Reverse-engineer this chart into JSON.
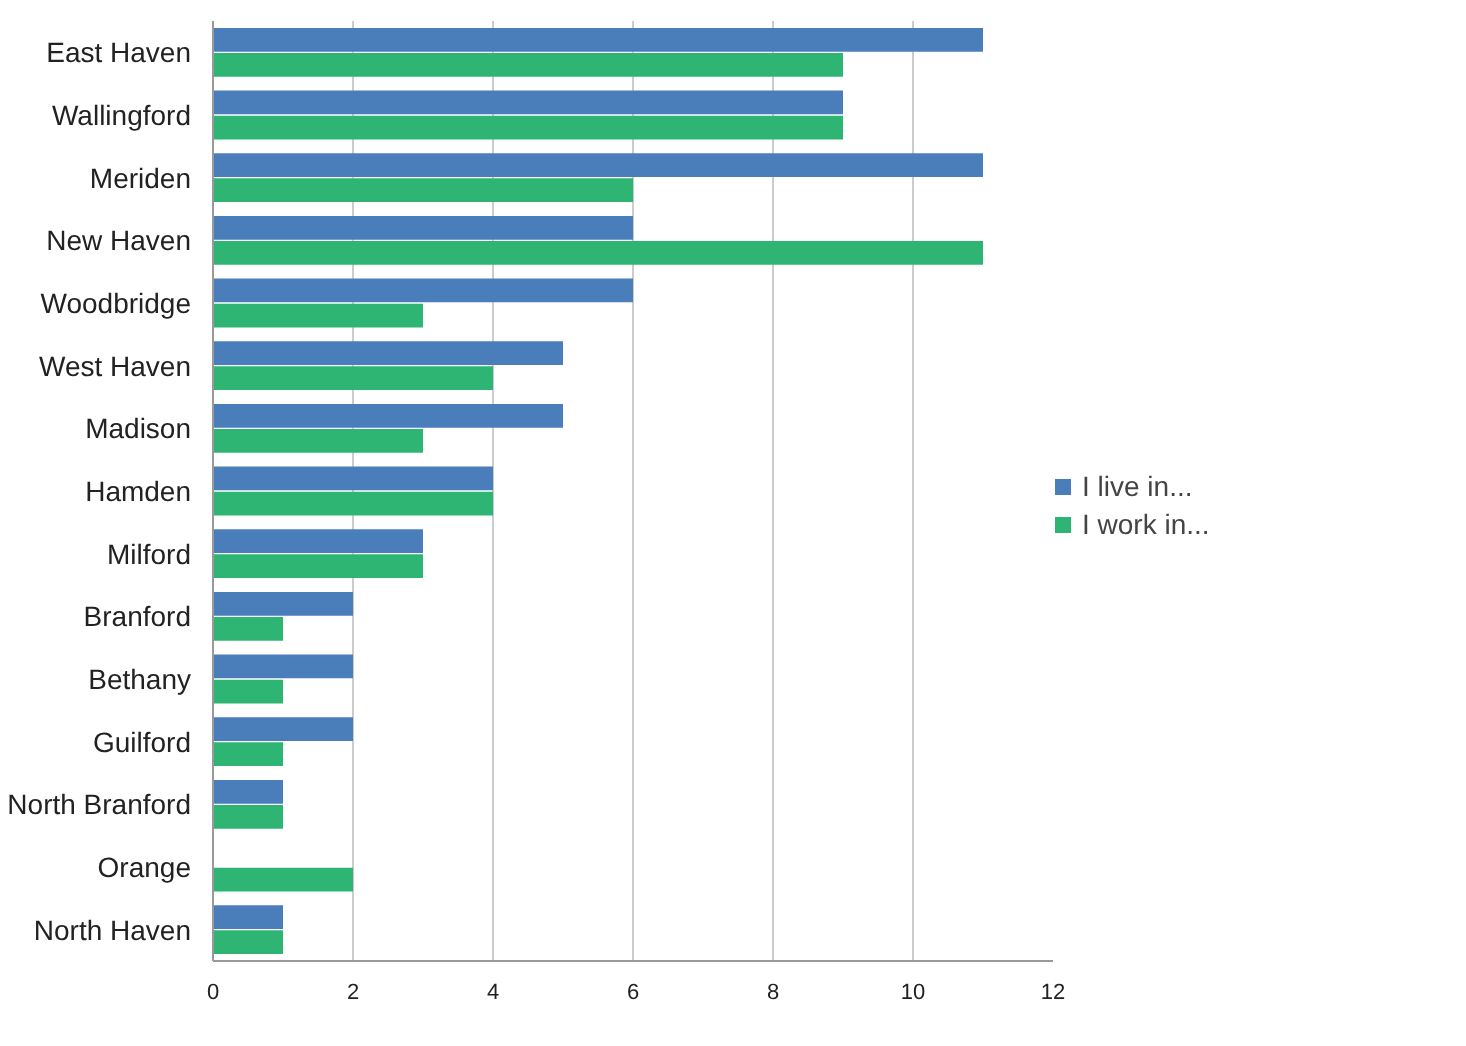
{
  "chart_data": {
    "type": "bar",
    "orientation": "horizontal",
    "categories": [
      "East Haven",
      "Wallingford",
      "Meriden",
      "New Haven",
      "Woodbridge",
      "West Haven",
      "Madison",
      "Hamden",
      "Milford",
      "Branford",
      "Bethany",
      "Guilford",
      "North Branford",
      "Orange",
      "North Haven"
    ],
    "series": [
      {
        "name": "I live in...",
        "color": "#4a7ebb",
        "values": [
          11,
          9,
          11,
          6,
          6,
          5,
          5,
          4,
          3,
          2,
          2,
          2,
          1,
          0,
          1
        ]
      },
      {
        "name": "I work in...",
        "color": "#2fb573",
        "values": [
          9,
          9,
          6,
          11,
          3,
          4,
          3,
          4,
          3,
          1,
          1,
          1,
          1,
          2,
          1
        ]
      }
    ],
    "xlim": [
      0,
      12
    ],
    "xticks": [
      0,
      2,
      4,
      6,
      8,
      10,
      12
    ],
    "grid": "x",
    "legend": "right"
  }
}
